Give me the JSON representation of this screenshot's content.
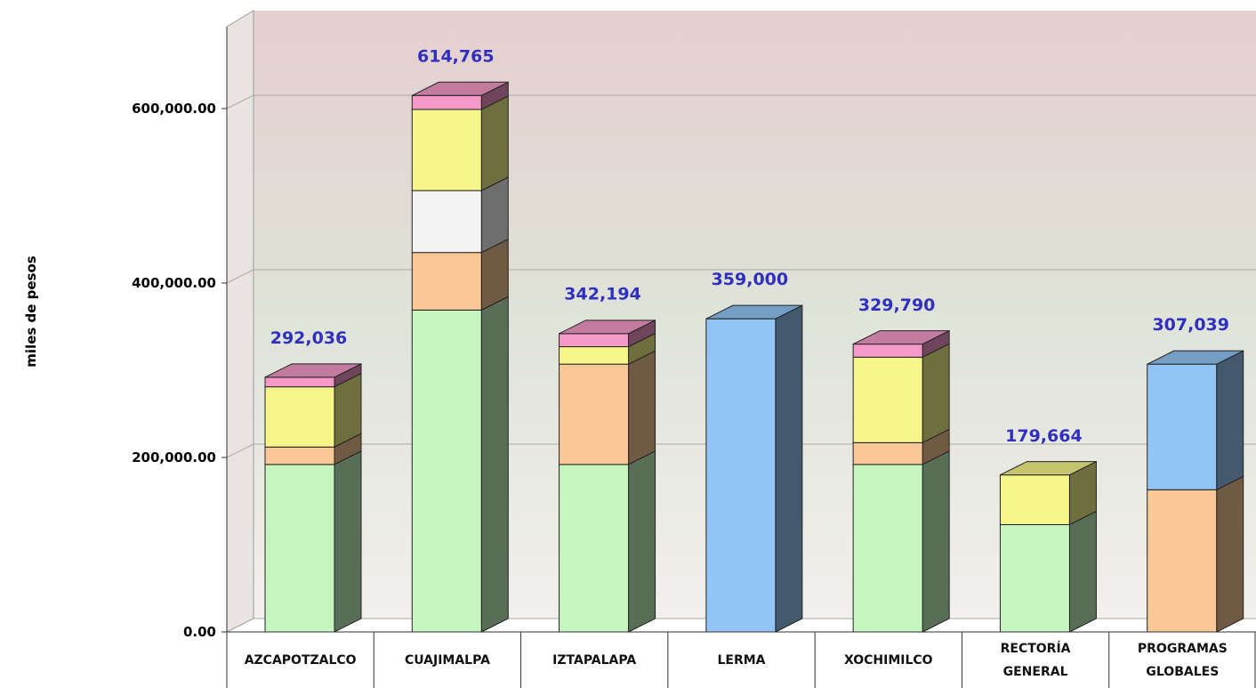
{
  "chart_data": {
    "type": "bar",
    "stacked": true,
    "y_label": "miles de pesos",
    "categories": [
      "AZCAPOTZALCO",
      "CUAJIMALPA",
      "IZTAPALAPA",
      "LERMA",
      "XOCHIMILCO",
      "RECTORÍA GENERAL",
      "PROGRAMAS GLOBALES"
    ],
    "series": [
      {
        "color": "#c6f5c0",
        "values": [
          192000,
          369000,
          192000,
          0,
          192000,
          123000,
          0
        ]
      },
      {
        "color": "#f9c896",
        "values": [
          20000,
          66000,
          115000,
          0,
          25000,
          0,
          163000
        ]
      },
      {
        "color": "#f4f4f4",
        "values": [
          0,
          71000,
          0,
          0,
          0,
          0,
          0
        ]
      },
      {
        "color": "#f6f58a",
        "values": [
          69000,
          93000,
          20000,
          0,
          98000,
          57000,
          0
        ]
      },
      {
        "color": "#f59ac8",
        "values": [
          11000,
          16000,
          15000,
          0,
          15000,
          0,
          0
        ]
      },
      {
        "color": "#92c5f5",
        "values": [
          0,
          0,
          0,
          359000,
          0,
          0,
          144000
        ]
      }
    ],
    "totals": [
      292036,
      614765,
      342194,
      359000,
      329790,
      179664,
      307039
    ],
    "value_labels": [
      "292,036",
      "614,765",
      "342,194",
      "359,000",
      "329,790",
      "179,664",
      "307,039"
    ],
    "ylim": [
      0,
      700000
    ],
    "yticks": [
      {
        "value": 0,
        "label": "0.00"
      },
      {
        "value": 200000,
        "label": "200,000.00"
      },
      {
        "value": 400000,
        "label": "400,000.00"
      },
      {
        "value": 600000,
        "label": "600,000.00"
      }
    ],
    "grid": true
  }
}
